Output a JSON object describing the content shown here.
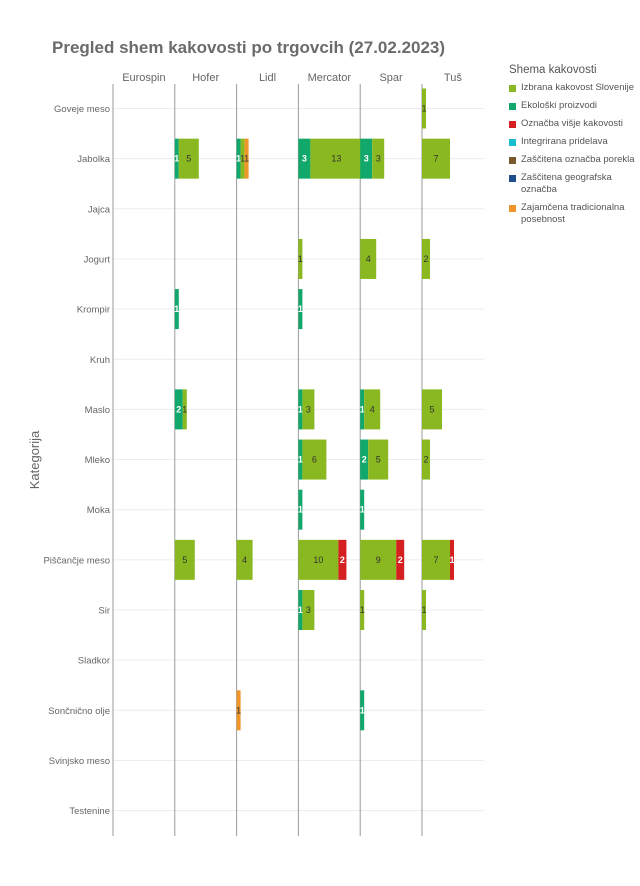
{
  "chart_data": {
    "type": "bar",
    "title": "Pregled shem kakovosti po trgovcih (27.02.2023)",
    "ylabel": "Kategorija",
    "stores": [
      "Eurospin",
      "Hofer",
      "Lidl",
      "Mercator",
      "Spar",
      "Tuš"
    ],
    "categories": [
      "Goveje meso",
      "Jabolka",
      "Jajca",
      "Jogurt",
      "Krompir",
      "Kruh",
      "Maslo",
      "Mleko",
      "Moka",
      "Piščančje meso",
      "Sir",
      "Sladkor",
      "Sončnično olje",
      "Svinjsko meso",
      "Testenine"
    ],
    "legend_title": "Shema kakovosti",
    "legend_position": "right",
    "x_range_per_panel": [
      0,
      18
    ],
    "series": [
      {
        "name": "Izbrana kakovost Slovenije",
        "color": "#8ab820"
      },
      {
        "name": "Ekološki proizvodi",
        "color": "#12a86b"
      },
      {
        "name": "Označba višje kakovosti",
        "color": "#d42020"
      },
      {
        "name": "Integrirana pridelava",
        "color": "#17becf"
      },
      {
        "name": "Zaščitena označba porekla",
        "color": "#7a5a2a"
      },
      {
        "name": "Zaščitena geografska označba",
        "color": "#1f4e8c"
      },
      {
        "name": "Zajamčena tradicionalna posebnost",
        "color": "#f0952a"
      }
    ],
    "segments": [
      {
        "store": "Tuš",
        "category": "Goveje meso",
        "series": "Izbrana kakovost Slovenije",
        "value": 1
      },
      {
        "store": "Hofer",
        "category": "Jabolka",
        "series": "Ekološki proizvodi",
        "value": 1
      },
      {
        "store": "Hofer",
        "category": "Jabolka",
        "series": "Izbrana kakovost Slovenije",
        "value": 5
      },
      {
        "store": "Lidl",
        "category": "Jabolka",
        "series": "Ekološki proizvodi",
        "value": 1
      },
      {
        "store": "Lidl",
        "category": "Jabolka",
        "series": "Izbrana kakovost Slovenije",
        "value": 1
      },
      {
        "store": "Lidl",
        "category": "Jabolka",
        "series": "Zajamčena tradicionalna posebnost",
        "value": 1
      },
      {
        "store": "Mercator",
        "category": "Jabolka",
        "series": "Ekološki proizvodi",
        "value": 3
      },
      {
        "store": "Mercator",
        "category": "Jabolka",
        "series": "Izbrana kakovost Slovenije",
        "value": 13
      },
      {
        "store": "Spar",
        "category": "Jabolka",
        "series": "Ekološki proizvodi",
        "value": 3
      },
      {
        "store": "Spar",
        "category": "Jabolka",
        "series": "Izbrana kakovost Slovenije",
        "value": 3
      },
      {
        "store": "Tuš",
        "category": "Jabolka",
        "series": "Izbrana kakovost Slovenije",
        "value": 7
      },
      {
        "store": "Mercator",
        "category": "Jogurt",
        "series": "Izbrana kakovost Slovenije",
        "value": 1
      },
      {
        "store": "Spar",
        "category": "Jogurt",
        "series": "Izbrana kakovost Slovenije",
        "value": 4
      },
      {
        "store": "Tuš",
        "category": "Jogurt",
        "series": "Izbrana kakovost Slovenije",
        "value": 2
      },
      {
        "store": "Hofer",
        "category": "Krompir",
        "series": "Ekološki proizvodi",
        "value": 1
      },
      {
        "store": "Mercator",
        "category": "Krompir",
        "series": "Ekološki proizvodi",
        "value": 1
      },
      {
        "store": "Hofer",
        "category": "Maslo",
        "series": "Ekološki proizvodi",
        "value": 2
      },
      {
        "store": "Hofer",
        "category": "Maslo",
        "series": "Izbrana kakovost Slovenije",
        "value": 1
      },
      {
        "store": "Mercator",
        "category": "Maslo",
        "series": "Ekološki proizvodi",
        "value": 1
      },
      {
        "store": "Mercator",
        "category": "Maslo",
        "series": "Izbrana kakovost Slovenije",
        "value": 3
      },
      {
        "store": "Spar",
        "category": "Maslo",
        "series": "Ekološki proizvodi",
        "value": 1
      },
      {
        "store": "Spar",
        "category": "Maslo",
        "series": "Izbrana kakovost Slovenije",
        "value": 4
      },
      {
        "store": "Tuš",
        "category": "Maslo",
        "series": "Izbrana kakovost Slovenije",
        "value": 5
      },
      {
        "store": "Mercator",
        "category": "Mleko",
        "series": "Ekološki proizvodi",
        "value": 1
      },
      {
        "store": "Mercator",
        "category": "Mleko",
        "series": "Izbrana kakovost Slovenije",
        "value": 6
      },
      {
        "store": "Spar",
        "category": "Mleko",
        "series": "Ekološki proizvodi",
        "value": 2
      },
      {
        "store": "Spar",
        "category": "Mleko",
        "series": "Izbrana kakovost Slovenije",
        "value": 5
      },
      {
        "store": "Tuš",
        "category": "Mleko",
        "series": "Izbrana kakovost Slovenije",
        "value": 2
      },
      {
        "store": "Mercator",
        "category": "Moka",
        "series": "Ekološki proizvodi",
        "value": 1
      },
      {
        "store": "Spar",
        "category": "Moka",
        "series": "Ekološki proizvodi",
        "value": 1
      },
      {
        "store": "Hofer",
        "category": "Piščančje meso",
        "series": "Izbrana kakovost Slovenije",
        "value": 5
      },
      {
        "store": "Lidl",
        "category": "Piščančje meso",
        "series": "Izbrana kakovost Slovenije",
        "value": 4
      },
      {
        "store": "Mercator",
        "category": "Piščančje meso",
        "series": "Izbrana kakovost Slovenije",
        "value": 10
      },
      {
        "store": "Mercator",
        "category": "Piščančje meso",
        "series": "Označba višje kakovosti",
        "value": 2
      },
      {
        "store": "Spar",
        "category": "Piščančje meso",
        "series": "Izbrana kakovost Slovenije",
        "value": 9
      },
      {
        "store": "Spar",
        "category": "Piščančje meso",
        "series": "Označba višje kakovosti",
        "value": 2
      },
      {
        "store": "Tuš",
        "category": "Piščančje meso",
        "series": "Izbrana kakovost Slovenije",
        "value": 7
      },
      {
        "store": "Tuš",
        "category": "Piščančje meso",
        "series": "Označba višje kakovosti",
        "value": 1
      },
      {
        "store": "Mercator",
        "category": "Sir",
        "series": "Ekološki proizvodi",
        "value": 1
      },
      {
        "store": "Mercator",
        "category": "Sir",
        "series": "Izbrana kakovost Slovenije",
        "value": 3
      },
      {
        "store": "Spar",
        "category": "Sir",
        "series": "Izbrana kakovost Slovenije",
        "value": 1
      },
      {
        "store": "Tuš",
        "category": "Sir",
        "series": "Izbrana kakovost Slovenije",
        "value": 1
      },
      {
        "store": "Lidl",
        "category": "Sončnično olje",
        "series": "Zajamčena tradicionalna posebnost",
        "value": 1
      },
      {
        "store": "Spar",
        "category": "Sončnično olje",
        "series": "Ekološki proizvodi",
        "value": 1
      }
    ]
  }
}
